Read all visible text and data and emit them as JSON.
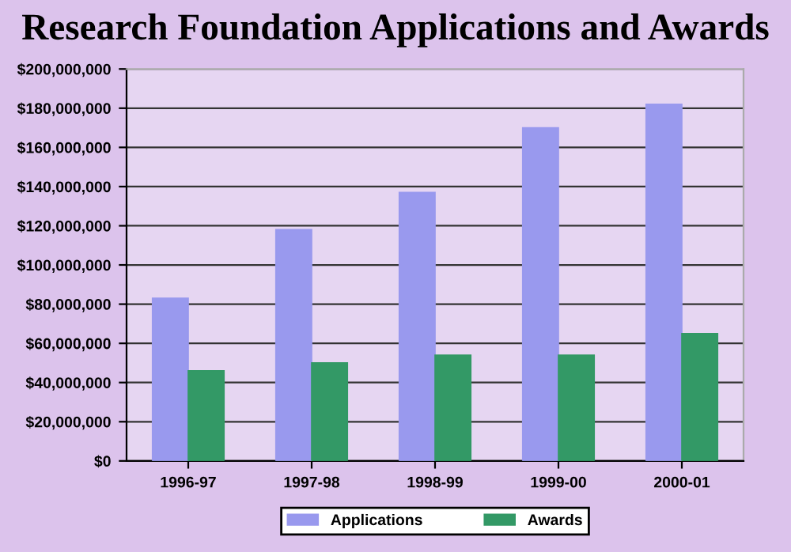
{
  "chart_data": {
    "type": "bar",
    "title": "Research Foundation Applications and Awards",
    "categories": [
      "1996-97",
      "1997-98",
      "1998-99",
      "1999-00",
      "2000-01"
    ],
    "series": [
      {
        "name": "Applications",
        "color": "#9999ee",
        "values": [
          83000000,
          118000000,
          137000000,
          170000000,
          182000000
        ]
      },
      {
        "name": "Awards",
        "color": "#339966",
        "values": [
          46000000,
          50000000,
          54000000,
          54000000,
          65000000
        ]
      }
    ],
    "ylim": [
      0,
      200000000
    ],
    "yticks": [
      {
        "value": 0,
        "label": "$0"
      },
      {
        "value": 20000000,
        "label": "$20,000,000"
      },
      {
        "value": 40000000,
        "label": "$40,000,000"
      },
      {
        "value": 60000000,
        "label": "$60,000,000"
      },
      {
        "value": 80000000,
        "label": "$80,000,000"
      },
      {
        "value": 100000000,
        "label": "$100,000,000"
      },
      {
        "value": 120000000,
        "label": "$120,000,000"
      },
      {
        "value": 140000000,
        "label": "$140,000,000"
      },
      {
        "value": 160000000,
        "label": "$160,000,000"
      },
      {
        "value": 180000000,
        "label": "$180,000,000"
      },
      {
        "value": 200000000,
        "label": "$200,000,000"
      }
    ],
    "grid": "y",
    "legend": "bottom"
  }
}
